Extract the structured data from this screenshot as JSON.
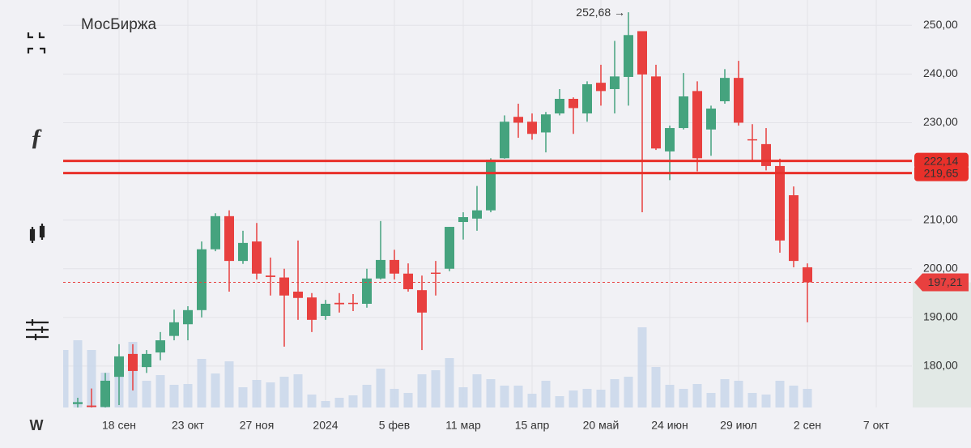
{
  "chart_data": {
    "type": "candlestick",
    "title": "МосБиржа",
    "timeframe": "W",
    "toolbar_icon": "ƒ",
    "categories": [
      null,
      null,
      null,
      null,
      "18 сен",
      null,
      null,
      null,
      null,
      "23 окт",
      null,
      null,
      null,
      null,
      "27 ноя",
      null,
      null,
      null,
      null,
      "2024",
      null,
      null,
      null,
      null,
      "5 фев",
      null,
      null,
      null,
      null,
      "11 мар",
      null,
      null,
      null,
      null,
      "15 апр",
      null,
      null,
      null,
      null,
      "20 май",
      null,
      null,
      null,
      null,
      "24 июн",
      null,
      null,
      null,
      null,
      "29 июл",
      null,
      null,
      null,
      null,
      "2 сен",
      null,
      null,
      null,
      null,
      "7 окт"
    ],
    "open": [
      null,
      172.2,
      171.9,
      171.6,
      177.8,
      182.5,
      179.8,
      182.8,
      186.2,
      188.6,
      191.5,
      204,
      210.8,
      201.6,
      205.6,
      198.6,
      198.2,
      195.3,
      194.1,
      190.3,
      193,
      193,
      192.8,
      198,
      201.8,
      199,
      195.6,
      199.2,
      200,
      209.6,
      210.3,
      212,
      222.7,
      231.2,
      230.2,
      228,
      231.9,
      234.9,
      231.9,
      238.2,
      236.9,
      239.4,
      248.8,
      239.5,
      224.1,
      228.9,
      236.5,
      228.6,
      234.4,
      239.2,
      226.6,
      225.6,
      221.1,
      215.1,
      200.3,
      null,
      null,
      null,
      null,
      null
    ],
    "high": [
      null,
      173.5,
      175.4,
      178.6,
      184.5,
      184.5,
      183.3,
      187,
      191.6,
      192.3,
      205.6,
      211.4,
      212,
      207.8,
      209.4,
      202.3,
      200,
      205.8,
      195,
      193.6,
      195,
      194.8,
      200,
      209.8,
      203.9,
      201.1,
      198.6,
      201.6,
      208.6,
      211.6,
      217,
      222.7,
      231.5,
      233.9,
      231.9,
      232.2,
      236.9,
      235.2,
      238.5,
      241.9,
      246.8,
      252.68,
      248.8,
      241.9,
      229.4,
      240.2,
      238.5,
      233.5,
      241,
      242.7,
      229.7,
      228.9,
      222.6,
      216.9,
      201.1,
      null,
      null,
      null,
      null,
      null
    ],
    "low": [
      null,
      171.5,
      171.5,
      171.5,
      172,
      175,
      178.6,
      181.2,
      185.3,
      185.3,
      190,
      203.6,
      195.3,
      201,
      197.8,
      194.5,
      184,
      189.5,
      187,
      189.5,
      191,
      191.3,
      192,
      197.8,
      197.8,
      195.3,
      183.3,
      194.5,
      199.5,
      206,
      207.8,
      211.6,
      222.6,
      226.9,
      226.5,
      223.9,
      231.5,
      227.7,
      230.2,
      233.5,
      231.9,
      233.5,
      211.6,
      224.4,
      218.2,
      228.6,
      220,
      223.2,
      233.9,
      229.4,
      222.2,
      220.2,
      203.3,
      200.3,
      189,
      null,
      null,
      null,
      null,
      null
    ],
    "close": [
      null,
      172.6,
      171.6,
      177,
      182,
      179,
      182.5,
      185.3,
      189,
      191.5,
      204,
      210.8,
      201.6,
      205.3,
      199,
      198.3,
      194.5,
      194,
      189.5,
      192.8,
      192.7,
      192.8,
      198,
      201.8,
      199,
      195.8,
      191,
      199,
      208.6,
      210.6,
      212,
      222.4,
      230.2,
      230,
      227.7,
      231.7,
      234.9,
      233,
      237.9,
      236.5,
      239.5,
      248,
      239.9,
      224.7,
      228.9,
      235.4,
      222.7,
      232.9,
      239.2,
      230,
      226.5,
      221.1,
      205.8,
      201.6,
      197.21,
      null,
      null,
      null,
      null,
      null
    ],
    "volume": [
      71,
      83,
      71,
      43,
      63,
      81,
      33,
      40,
      28,
      29,
      60,
      42,
      57,
      25,
      34,
      31,
      38,
      41,
      16,
      8,
      12,
      15,
      28,
      48,
      23,
      18,
      41,
      46,
      61,
      25,
      41,
      35,
      27,
      27,
      17,
      33,
      14,
      21,
      23,
      22,
      35,
      38,
      99,
      50,
      28,
      23,
      29,
      18,
      35,
      33,
      18,
      16,
      33,
      27,
      23,
      null,
      null,
      null,
      null,
      null
    ],
    "volume_lim": [
      0,
      100
    ],
    "up_color": "#45a37e",
    "down_color": "#e8403f",
    "volume_color": "#c9d7ea",
    "ylim": [
      171.5,
      255.2
    ],
    "yticks": [
      {
        "value": 180,
        "label": "180,00"
      },
      {
        "value": 190,
        "label": "190,00"
      },
      {
        "value": 200,
        "label": "200,00"
      },
      {
        "value": 210,
        "label": "210,00"
      },
      {
        "value": 230,
        "label": "230,00"
      },
      {
        "value": 240,
        "label": "240,00"
      },
      {
        "value": 250,
        "label": "250,00"
      }
    ],
    "grid": true,
    "levels": [
      {
        "value": 219.65,
        "label": "219,65"
      },
      {
        "value": 222.14,
        "label": "222,14"
      }
    ],
    "last_price": {
      "value": 197.21,
      "label": "197,21"
    },
    "max_label": {
      "value": 252.68,
      "label": "252,68 →"
    }
  }
}
